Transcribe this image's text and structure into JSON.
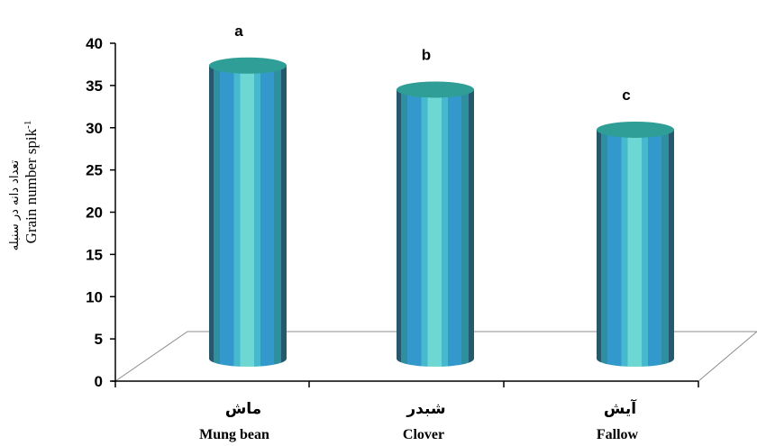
{
  "chart_data": {
    "type": "bar",
    "categories": [
      {
        "fa": "ماش",
        "en": "Mung bean"
      },
      {
        "fa": "شبدر",
        "en": "Clover"
      },
      {
        "fa": "آیش",
        "en": "Fallow"
      }
    ],
    "values": [
      37.5,
      34.5,
      29.5
    ],
    "significance": [
      "a",
      "b",
      "c"
    ],
    "ylabel_fa": "تعداد دانه در سنبله",
    "ylabel_en": "Grain number spik",
    "ylabel_en_sup": "-1",
    "ylim": [
      0,
      40
    ],
    "yticks": [
      "0",
      "5",
      "10",
      "15",
      "20",
      "25",
      "30",
      "35",
      "40"
    ],
    "style": "3d-cylinder",
    "colors": {
      "bar_top": "#2e9e96",
      "bar_stripes": [
        "#27627a",
        "#2f8fa0",
        "#3399cc",
        "#46b9cf",
        "#66d6d1"
      ],
      "floor_line": "#888888"
    }
  }
}
